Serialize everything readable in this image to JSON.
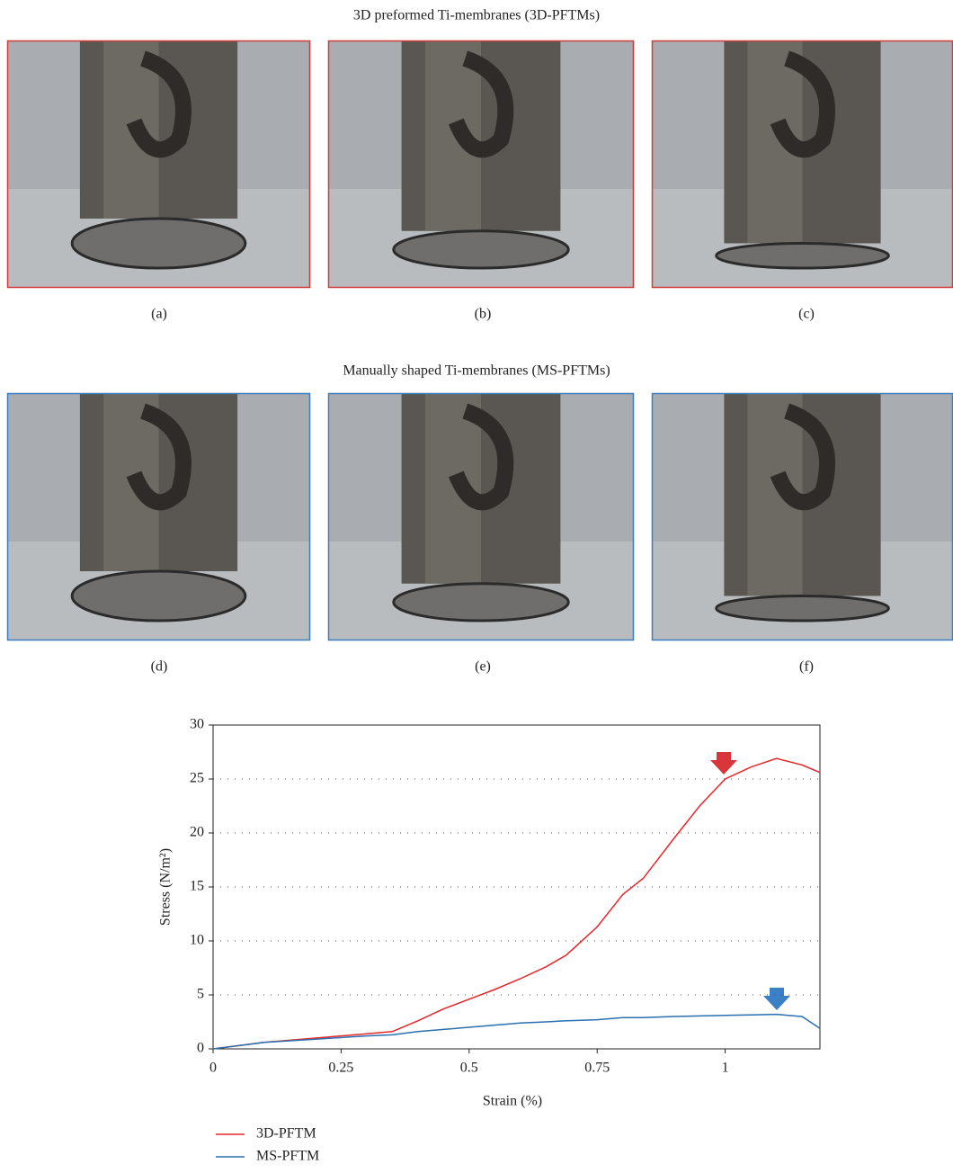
{
  "figure": {
    "row_titles": [
      "3D preformed Ti-membranes (3D-PFTMs)",
      "Manually shaped Ti-membranes (MS-PFTMs)"
    ],
    "panel_labels": [
      "(a)",
      "(b)",
      "(c)",
      "(d)",
      "(e)",
      "(f)"
    ]
  },
  "chart_data": {
    "type": "line",
    "x_label": "Strain (%)",
    "y_label": "Stress (N/m²)",
    "x": [
      0,
      0.1,
      0.2,
      0.3,
      0.35,
      0.4,
      0.45,
      0.5,
      0.55,
      0.6,
      0.65,
      0.69,
      0.75,
      0.8,
      0.84,
      0.9,
      0.95,
      1.0,
      1.05,
      1.1,
      1.15,
      1.185
    ],
    "series": [
      {
        "name": "3D-PFTM",
        "color": "#e8262a",
        "values": [
          0,
          0.6,
          1.0,
          1.4,
          1.6,
          2.6,
          3.7,
          4.6,
          5.5,
          6.5,
          7.6,
          8.7,
          11.3,
          14.3,
          15.8,
          19.5,
          22.5,
          25.0,
          26.1,
          26.9,
          26.3,
          25.6
        ]
      },
      {
        "name": "MS-PFTM",
        "color": "#2a6fb0",
        "values": [
          0,
          0.6,
          0.9,
          1.2,
          1.3,
          1.6,
          1.8,
          2.0,
          2.2,
          2.4,
          2.5,
          2.6,
          2.7,
          2.9,
          2.9,
          3.0,
          3.05,
          3.1,
          3.15,
          3.2,
          3.0,
          1.9
        ]
      }
    ],
    "xlim": [
      0,
      1.185
    ],
    "xticks": [
      0,
      0.25,
      0.5,
      0.75,
      1
    ],
    "ylim": [
      0,
      30
    ],
    "yticks": [
      0,
      5,
      10,
      15,
      20,
      25,
      30
    ],
    "grid": true,
    "legend": "bottom"
  }
}
